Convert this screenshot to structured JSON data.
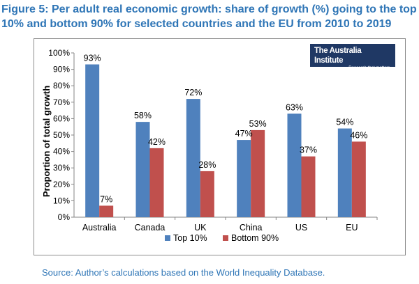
{
  "figure": {
    "title": "Figure 5: Per adult real economic growth: share of growth (%) going to the top 10% and bottom 90% for selected countries and the EU from 2010 to 2019",
    "source": "Source: Author’s calculations based on the World Inequality Database."
  },
  "logo": {
    "name": "The Australia Institute",
    "tagline": "Research that matters."
  },
  "chart_data": {
    "type": "bar",
    "categories": [
      "Australia",
      "Canada",
      "UK",
      "China",
      "US",
      "EU"
    ],
    "series": [
      {
        "name": "Top 10%",
        "values": [
          93,
          58,
          72,
          47,
          63,
          54
        ],
        "labels": [
          "93%",
          "58%",
          "72%",
          "47%",
          "63%",
          "54%"
        ],
        "color": "#4f81bd"
      },
      {
        "name": "Bottom 90%",
        "values": [
          7,
          42,
          28,
          53,
          37,
          46
        ],
        "labels": [
          "7%",
          "42%",
          "28%",
          "53%",
          "37%",
          "46%"
        ],
        "color": "#c0504d"
      }
    ],
    "ylabel": "Proportion of total growth",
    "xlabel": "",
    "ylim": [
      0,
      100
    ],
    "yticks": [
      "0%",
      "10%",
      "20%",
      "30%",
      "40%",
      "50%",
      "60%",
      "70%",
      "80%",
      "90%",
      "100%"
    ],
    "grid": false,
    "legend": "bottom"
  }
}
